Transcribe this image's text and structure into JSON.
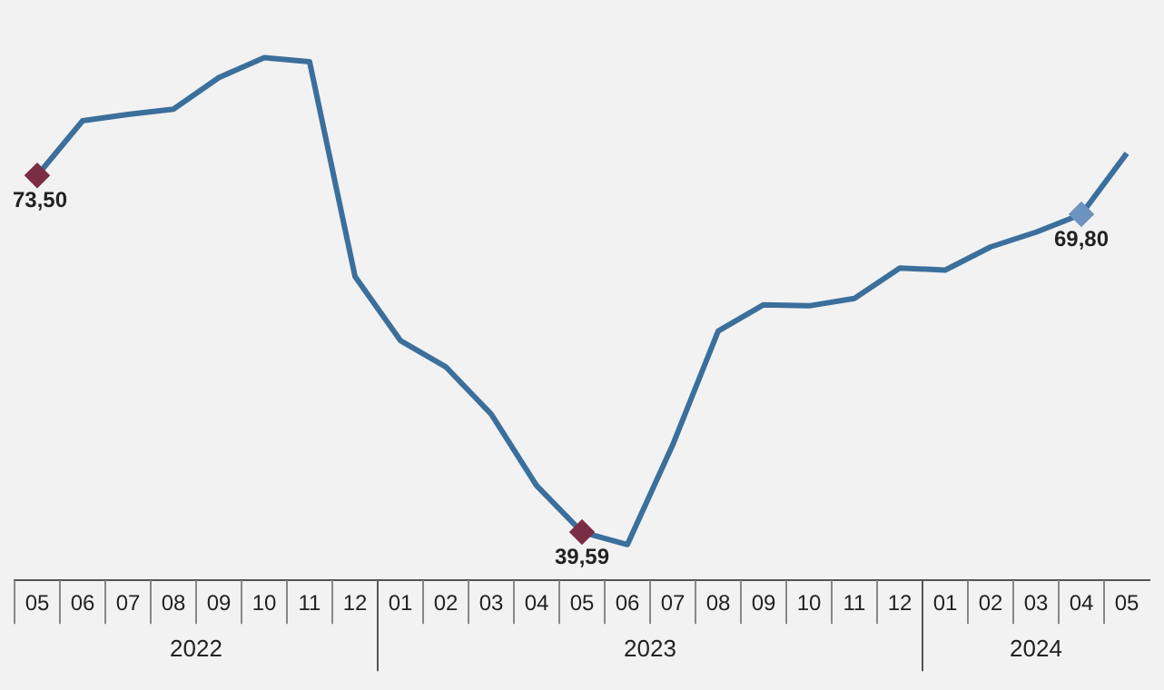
{
  "chart_data": {
    "type": "line",
    "categories": [
      "05",
      "06",
      "07",
      "08",
      "09",
      "10",
      "11",
      "12",
      "01",
      "02",
      "03",
      "04",
      "05",
      "06",
      "07",
      "08",
      "09",
      "10",
      "11",
      "12",
      "01",
      "02",
      "03",
      "04",
      "05"
    ],
    "series": [
      {
        "color": "#3b6f9c",
        "values": [
          73.5,
          78.7,
          79.3,
          79.8,
          82.8,
          84.7,
          84.3,
          63.9,
          57.8,
          55.3,
          50.8,
          44.0,
          39.59,
          38.4,
          47.9,
          58.7,
          61.2,
          61.1,
          61.8,
          64.7,
          64.5,
          66.7,
          68.1,
          69.8,
          75.6
        ],
        "value_labels": [
          "73,50",
          null,
          null,
          null,
          null,
          null,
          null,
          null,
          null,
          null,
          null,
          null,
          "39,59",
          null,
          null,
          null,
          null,
          null,
          null,
          null,
          null,
          null,
          null,
          "69,80",
          null
        ],
        "colors": [
          "#7b2d45",
          null,
          null,
          null,
          null,
          null,
          null,
          null,
          null,
          null,
          null,
          null,
          "#7b2d45",
          null,
          null,
          null,
          null,
          null,
          null,
          null,
          null,
          null,
          null,
          "#6d93bf",
          null
        ]
      }
    ],
    "annotations": [
      "2022",
      "2023",
      "2024"
    ],
    "line_style": "solid",
    "grid": false,
    "legend": false,
    "tick_labels": "x"
  }
}
